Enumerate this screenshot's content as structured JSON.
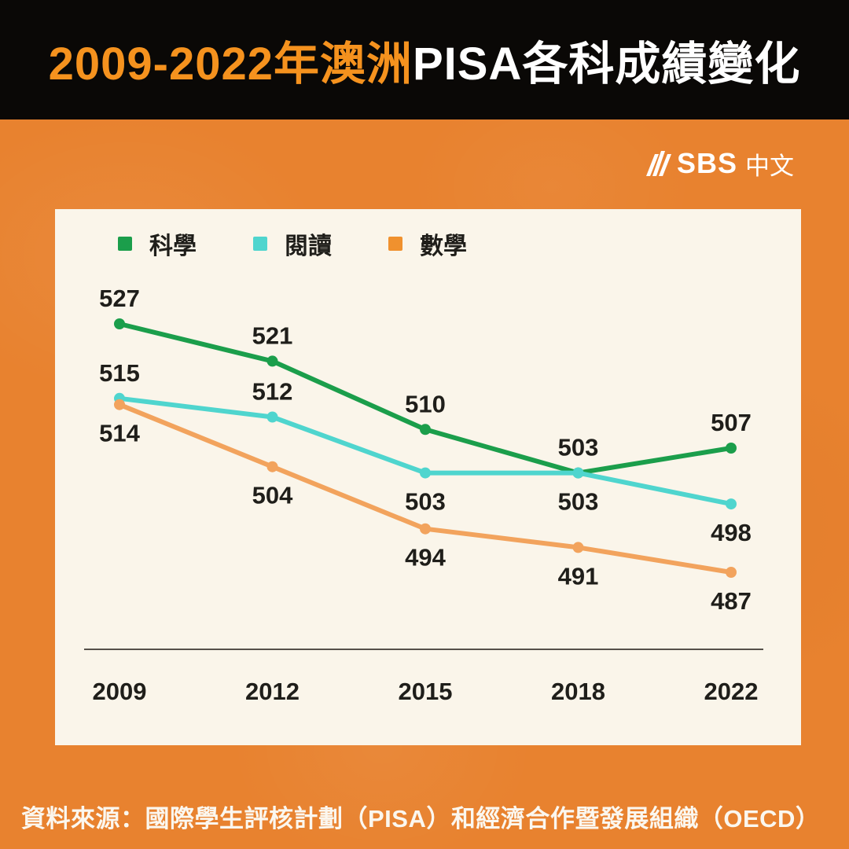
{
  "title": {
    "prefix": "2009-2022年澳洲",
    "suffix": "PISA各科成績變化"
  },
  "logo": {
    "brand": "SBS",
    "lang": "中文"
  },
  "footer": {
    "source": "資料來源：國際學生評核計劃（PISA）和經濟合作暨發展組織（OECD）"
  },
  "colors": {
    "background_orange": "#E8822F",
    "banner_black": "#0A0806",
    "title_orange": "#F5921E",
    "title_white": "#FFFFFF",
    "card_cream": "#FAF5EA",
    "science_green": "#1B9E4B",
    "reading_cyan": "#4FD5CE",
    "math_line_orange": "#F2A35D",
    "math_legend_orange": "#F0912E",
    "label_text": "#1F1E1A",
    "axis_gray": "#55504A",
    "footer_white": "#FBF7EF"
  },
  "chart_data": {
    "type": "line",
    "title": "2009-2022年澳洲PISA各科成績變化",
    "categories": [
      "2009",
      "2012",
      "2015",
      "2018",
      "2022"
    ],
    "series": [
      {
        "name": "科學",
        "color": "#1B9E4B",
        "values": [
          527,
          521,
          510,
          503,
          507
        ],
        "label_side": [
          "above",
          "above",
          "above",
          "above",
          "above"
        ]
      },
      {
        "name": "閱讀",
        "color": "#4FD5CE",
        "values": [
          515,
          512,
          503,
          503,
          498
        ],
        "label_side": [
          "above",
          "above",
          "below",
          "below",
          "below"
        ]
      },
      {
        "name": "數學",
        "color": "#F2A35D",
        "legend_color": "#F0912E",
        "values": [
          514,
          504,
          494,
          491,
          487
        ],
        "label_side": [
          "below",
          "below",
          "below",
          "below",
          "below"
        ]
      }
    ],
    "xlabel": "",
    "ylabel": "",
    "ylim": [
      480,
      535
    ],
    "grid": false,
    "legend_position": "top-left",
    "point_labels_shown": true
  }
}
